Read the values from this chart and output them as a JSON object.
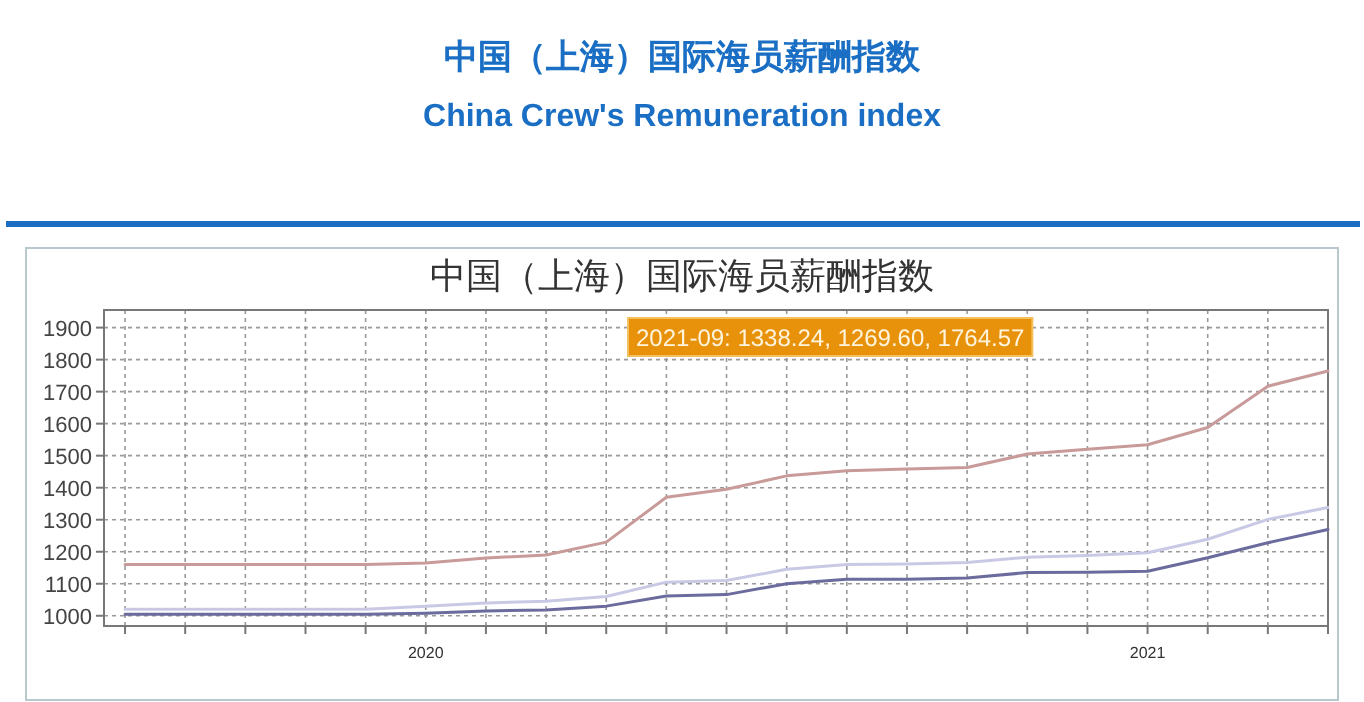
{
  "chart_data": {
    "type": "line",
    "title": "中国（上海）国际海员薪酬指数",
    "subtitle": "China Crew's Remuneration index",
    "annotations": [
      "中国（上海）国际海员薪酬指数",
      "2021-09: 1338.24, 1269.60, 1764.57"
    ],
    "categories": [
      null,
      null,
      null,
      null,
      null,
      "2020",
      null,
      null,
      null,
      null,
      null,
      null,
      null,
      null,
      null,
      null,
      null,
      "2021",
      null,
      null,
      null
    ],
    "series": [
      {
        "color": "#c9c9e6",
        "values": [
          1020,
          1020,
          1020,
          1020,
          1020,
          1030,
          1040,
          1045,
          1060,
          1105,
          1110,
          1145,
          1160,
          1162,
          1166,
          1183,
          1188,
          1197,
          1239,
          1301,
          1338.24
        ]
      },
      {
        "color": "#6b6b9e",
        "values": [
          1005,
          1005,
          1005,
          1005,
          1005,
          1008,
          1015,
          1018,
          1030,
          1062,
          1066,
          1100,
          1114,
          1114,
          1118,
          1135,
          1136,
          1139,
          1181,
          1228,
          1269.6
        ]
      },
      {
        "color": "#c99a9a",
        "values": [
          1160,
          1160,
          1160,
          1160,
          1160,
          1165,
          1180,
          1190,
          1230,
          1370,
          1395,
          1437,
          1453,
          1458,
          1463,
          1505,
          1520,
          1534,
          1588,
          1717,
          1764.57
        ]
      }
    ],
    "ylim": [
      968,
      1955
    ],
    "yticks": [
      1000,
      1100,
      1200,
      1300,
      1400,
      1500,
      1600,
      1700,
      1800,
      1900
    ],
    "grid": true,
    "marker": "none",
    "line_style": "solid"
  }
}
